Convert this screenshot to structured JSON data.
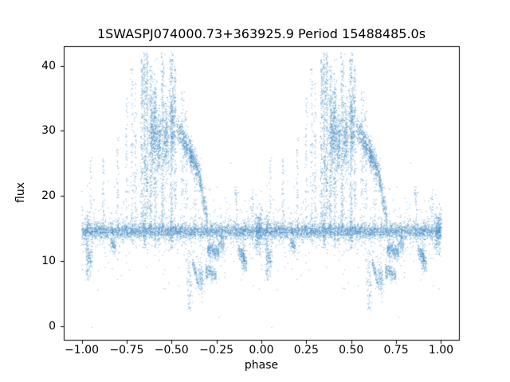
{
  "chart_data": {
    "type": "scatter",
    "title": "1SWASPJ074000.73+363925.9 Period 15488485.0s",
    "xlabel": "phase",
    "ylabel": "flux",
    "xlim": [
      -1.1,
      1.1
    ],
    "ylim": [
      -2.1,
      43.0
    ],
    "xticks": [
      -1.0,
      -0.75,
      -0.5,
      -0.25,
      0.0,
      0.25,
      0.5,
      0.75,
      1.0
    ],
    "xtick_labels": [
      "−1.00",
      "−0.75",
      "−0.50",
      "−0.25",
      "0.00",
      "0.25",
      "0.50",
      "0.75",
      "1.00"
    ],
    "yticks": [
      0,
      10,
      20,
      30,
      40
    ],
    "ytick_labels": [
      "0",
      "10",
      "20",
      "30",
      "40"
    ],
    "grid": false,
    "legend": "none",
    "marker_color": "#4a90c4",
    "marker_alpha": 0.55,
    "marker_size_px": 1.2,
    "phase_fold_duplicated": true,
    "clusters": [
      {
        "type": "band",
        "p0": 0.0,
        "p1": 1.0,
        "f0": 14.6,
        "f1": 14.6,
        "fs": 0.55,
        "n": 2600
      },
      {
        "type": "band",
        "p0": 0.0,
        "p1": 1.0,
        "f0": 14.5,
        "f1": 14.5,
        "fs": 1.4,
        "n": 900
      },
      {
        "type": "band",
        "p0": 0.0,
        "p1": 1.0,
        "f0": 15.0,
        "f1": 15.0,
        "fs": 4.5,
        "n": 250
      },
      {
        "type": "col",
        "p": 0.335,
        "pw": 0.004,
        "f0": 15,
        "f1": 41,
        "n": 160
      },
      {
        "type": "col",
        "p": 0.35,
        "pw": 0.005,
        "f0": 12,
        "f1": 42,
        "n": 260
      },
      {
        "type": "col",
        "p": 0.365,
        "pw": 0.004,
        "f0": 16,
        "f1": 42,
        "n": 200
      },
      {
        "type": "col",
        "p": 0.385,
        "pw": 0.005,
        "f0": 14,
        "f1": 40,
        "n": 220
      },
      {
        "type": "blob",
        "p": 0.4,
        "pw": 0.01,
        "f": 30,
        "fs": 3.2,
        "n": 320
      },
      {
        "type": "col",
        "p": 0.41,
        "pw": 0.005,
        "f0": 12,
        "f1": 38,
        "n": 200
      },
      {
        "type": "blob",
        "p": 0.43,
        "pw": 0.008,
        "f": 28,
        "fs": 2.5,
        "n": 220
      },
      {
        "type": "col",
        "p": 0.45,
        "pw": 0.005,
        "f0": 15,
        "f1": 42,
        "n": 220
      },
      {
        "type": "blob",
        "p": 0.47,
        "pw": 0.009,
        "f": 29,
        "fs": 2.8,
        "n": 260
      },
      {
        "type": "col",
        "p": 0.5,
        "pw": 0.006,
        "f0": 12,
        "f1": 42,
        "n": 280
      },
      {
        "type": "blob",
        "p": 0.505,
        "pw": 0.008,
        "f": 31,
        "fs": 3.0,
        "n": 200
      },
      {
        "type": "col",
        "p": 0.52,
        "pw": 0.004,
        "f0": 18,
        "f1": 40,
        "n": 120
      },
      {
        "type": "band",
        "p0": 0.53,
        "p1": 0.615,
        "f0": 30.5,
        "f1": 26,
        "fs": 1.1,
        "n": 380
      },
      {
        "type": "band",
        "p0": 0.6,
        "p1": 0.665,
        "f0": 26.5,
        "f1": 23,
        "fs": 1.0,
        "n": 300
      },
      {
        "type": "band",
        "p0": 0.655,
        "p1": 0.7,
        "f0": 22.5,
        "f1": 16.5,
        "fs": 1.0,
        "n": 160
      },
      {
        "type": "col",
        "p": 0.56,
        "pw": 0.006,
        "f0": 20,
        "f1": 36,
        "n": 60
      },
      {
        "type": "col",
        "p": 0.58,
        "pw": 0.005,
        "f0": 18,
        "f1": 33,
        "n": 50
      },
      {
        "type": "col",
        "p": 0.63,
        "pw": 0.005,
        "f0": 16,
        "f1": 28,
        "n": 40
      },
      {
        "type": "col",
        "p": 0.6,
        "pw": 0.008,
        "f0": 2,
        "f1": 12,
        "n": 70
      },
      {
        "type": "band",
        "p0": 0.615,
        "p1": 0.655,
        "f0": 10,
        "f1": 6,
        "fs": 0.6,
        "n": 90
      },
      {
        "type": "blob",
        "p": 0.665,
        "pw": 0.008,
        "f": 7.5,
        "fs": 1.2,
        "n": 90
      },
      {
        "type": "band",
        "p0": 0.69,
        "p1": 0.75,
        "f0": 8.5,
        "f1": 7.8,
        "fs": 0.6,
        "n": 160
      },
      {
        "type": "band",
        "p0": 0.7,
        "p1": 0.765,
        "f0": 11.8,
        "f1": 11.2,
        "fs": 0.6,
        "n": 220
      },
      {
        "type": "blob",
        "p": 0.78,
        "pw": 0.01,
        "f": 12.5,
        "fs": 0.8,
        "n": 80
      },
      {
        "type": "col",
        "p": 0.03,
        "pw": 0.006,
        "f0": 7,
        "f1": 17,
        "n": 110
      },
      {
        "type": "blob",
        "p": 0.045,
        "pw": 0.008,
        "f": 10.5,
        "fs": 1.4,
        "n": 90
      },
      {
        "type": "col",
        "p": 0.05,
        "pw": 0.003,
        "f0": 17,
        "f1": 26,
        "n": 20
      },
      {
        "type": "col",
        "p": 0.12,
        "pw": 0.004,
        "f0": 15,
        "f1": 26,
        "n": 45
      },
      {
        "type": "band",
        "p0": 0.16,
        "p1": 0.19,
        "f0": 12.8,
        "f1": 12.2,
        "fs": 0.5,
        "n": 70
      },
      {
        "type": "col",
        "p": 0.2,
        "pw": 0.004,
        "f0": 14,
        "f1": 29,
        "n": 40
      },
      {
        "type": "col",
        "p": 0.25,
        "pw": 0.004,
        "f0": 14,
        "f1": 35,
        "n": 55
      },
      {
        "type": "col",
        "p": 0.28,
        "pw": 0.005,
        "f0": 12,
        "f1": 40,
        "n": 70
      },
      {
        "type": "col",
        "p": 0.3,
        "pw": 0.004,
        "f0": 14,
        "f1": 38,
        "n": 60
      },
      {
        "type": "band",
        "p0": 0.87,
        "p1": 0.92,
        "f0": 12,
        "f1": 9.5,
        "fs": 0.8,
        "n": 130
      },
      {
        "type": "blob",
        "p": 0.9,
        "pw": 0.006,
        "f": 10.5,
        "fs": 1.0,
        "n": 80
      },
      {
        "type": "col",
        "p": 0.86,
        "pw": 0.004,
        "f0": 14,
        "f1": 22,
        "n": 35
      },
      {
        "type": "col",
        "p": 0.95,
        "pw": 0.004,
        "f0": 14,
        "f1": 21,
        "n": 30
      },
      {
        "type": "blob",
        "p": 0.985,
        "pw": 0.01,
        "f": 14.5,
        "fs": 1.6,
        "n": 200
      }
    ]
  }
}
